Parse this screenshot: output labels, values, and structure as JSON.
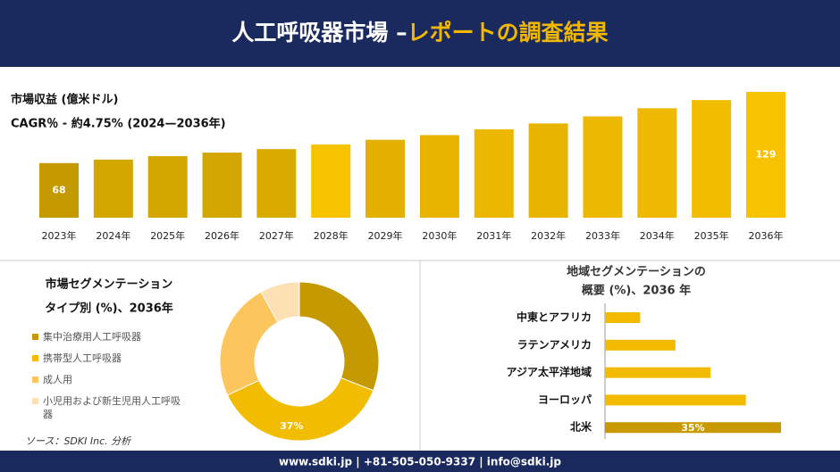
{
  "header": {
    "title": "人工呼吸器市場 –",
    "highlight": "レポートの調査結果"
  },
  "chart_data": [
    {
      "type": "bar",
      "title": "市場収益 (億米ドル)",
      "subtitle": "CAGR％ - 約4.75% (2024—2036年)",
      "categories": [
        "2023年",
        "2024年",
        "2025年",
        "2026年",
        "2027年",
        "2028年",
        "2029年",
        "2030年",
        "2031年",
        "2032年",
        "2033年",
        "2034年",
        "2035年",
        "2036年"
      ],
      "values": [
        68,
        71,
        74,
        77,
        80,
        84,
        88,
        92,
        97,
        102,
        108,
        115,
        122,
        129
      ],
      "value_labels": [
        "68",
        null,
        null,
        null,
        null,
        null,
        null,
        null,
        null,
        null,
        null,
        null,
        null,
        "129"
      ],
      "colors": [
        "#c49a00",
        "#d4a600",
        "#d4a600",
        "#d4a600",
        "#d9aa00",
        "#f7c200",
        "#e3b000",
        "#e8b400",
        "#ecb700",
        "#e8b400",
        "#edb800",
        "#eeb900",
        "#f2bc00",
        "#f7c200"
      ],
      "ylim": [
        48,
        129
      ]
    },
    {
      "type": "pie",
      "title": "市場セグメンテーション",
      "subtitle": "タイプ別 (%)、2036年",
      "categories": [
        "集中治療用人工呼吸器",
        "携帯型人工呼吸器",
        "成人用",
        "小児用および新生児用人工呼吸器"
      ],
      "values": [
        31,
        37,
        24,
        8
      ],
      "value_labels": [
        null,
        "37%",
        null,
        null
      ],
      "colors": [
        "#c49a00",
        "#f2bc00",
        "#fcc55e",
        "#fde0b4"
      ],
      "source": "ソース：SDKI Inc. 分析"
    },
    {
      "type": "barh",
      "title": "地域セグメンテーションの",
      "subtitle": "概要 (%)、2036 年",
      "categories": [
        "中東とアフリカ",
        "ラテンアメリカ",
        "アジア太平洋地域",
        "ヨーロッパ",
        "北米"
      ],
      "values": [
        7,
        14,
        21,
        28,
        35
      ],
      "value_labels": [
        null,
        null,
        null,
        null,
        "35%"
      ],
      "colors": [
        "#f2bb00",
        "#f2bb00",
        "#f2bb00",
        "#f2bb00",
        "#c99a00"
      ],
      "xlim": [
        0,
        35
      ]
    }
  ],
  "footer": "www.sdki.jp | +81-505-050-9337 | info@sdki.jp"
}
